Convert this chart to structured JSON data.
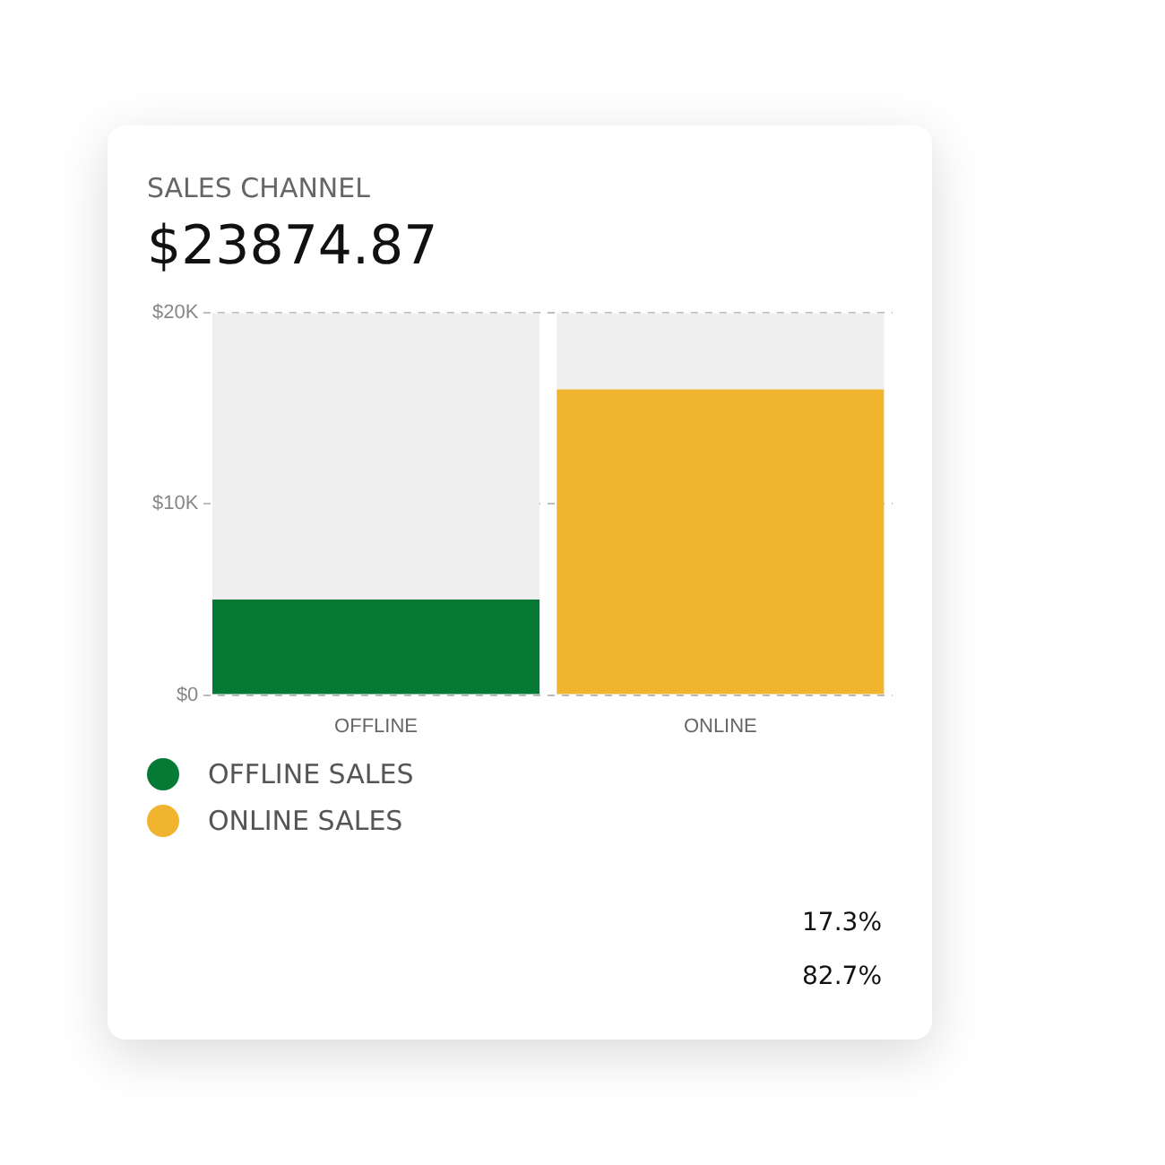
{
  "chart_data": {
    "type": "bar",
    "title": "SALES CHANNEL",
    "subtitle": "$23874.87",
    "categories": [
      "OFFLINE",
      "ONLINE"
    ],
    "stacked": true,
    "series": [
      {
        "name": "OFFLINE SALES",
        "color": "#047a35",
        "values": [
          5000,
          null
        ]
      },
      {
        "name": "ONLINE SALES",
        "color": "#f0b42e",
        "values": [
          null,
          16000
        ]
      },
      {
        "color": "#efefef",
        "values": [
          15000,
          4000
        ]
      }
    ],
    "ylim": [
      0,
      20000
    ],
    "yticks": [
      {
        "value": 0,
        "label": "$0"
      },
      {
        "value": 10000,
        "label": "$10K"
      },
      {
        "value": 20000,
        "label": "$20K"
      }
    ],
    "grid": "y",
    "line_style": "dashed",
    "legend": "bottom",
    "annotations": [
      "17.3%",
      "82.7%"
    ]
  }
}
